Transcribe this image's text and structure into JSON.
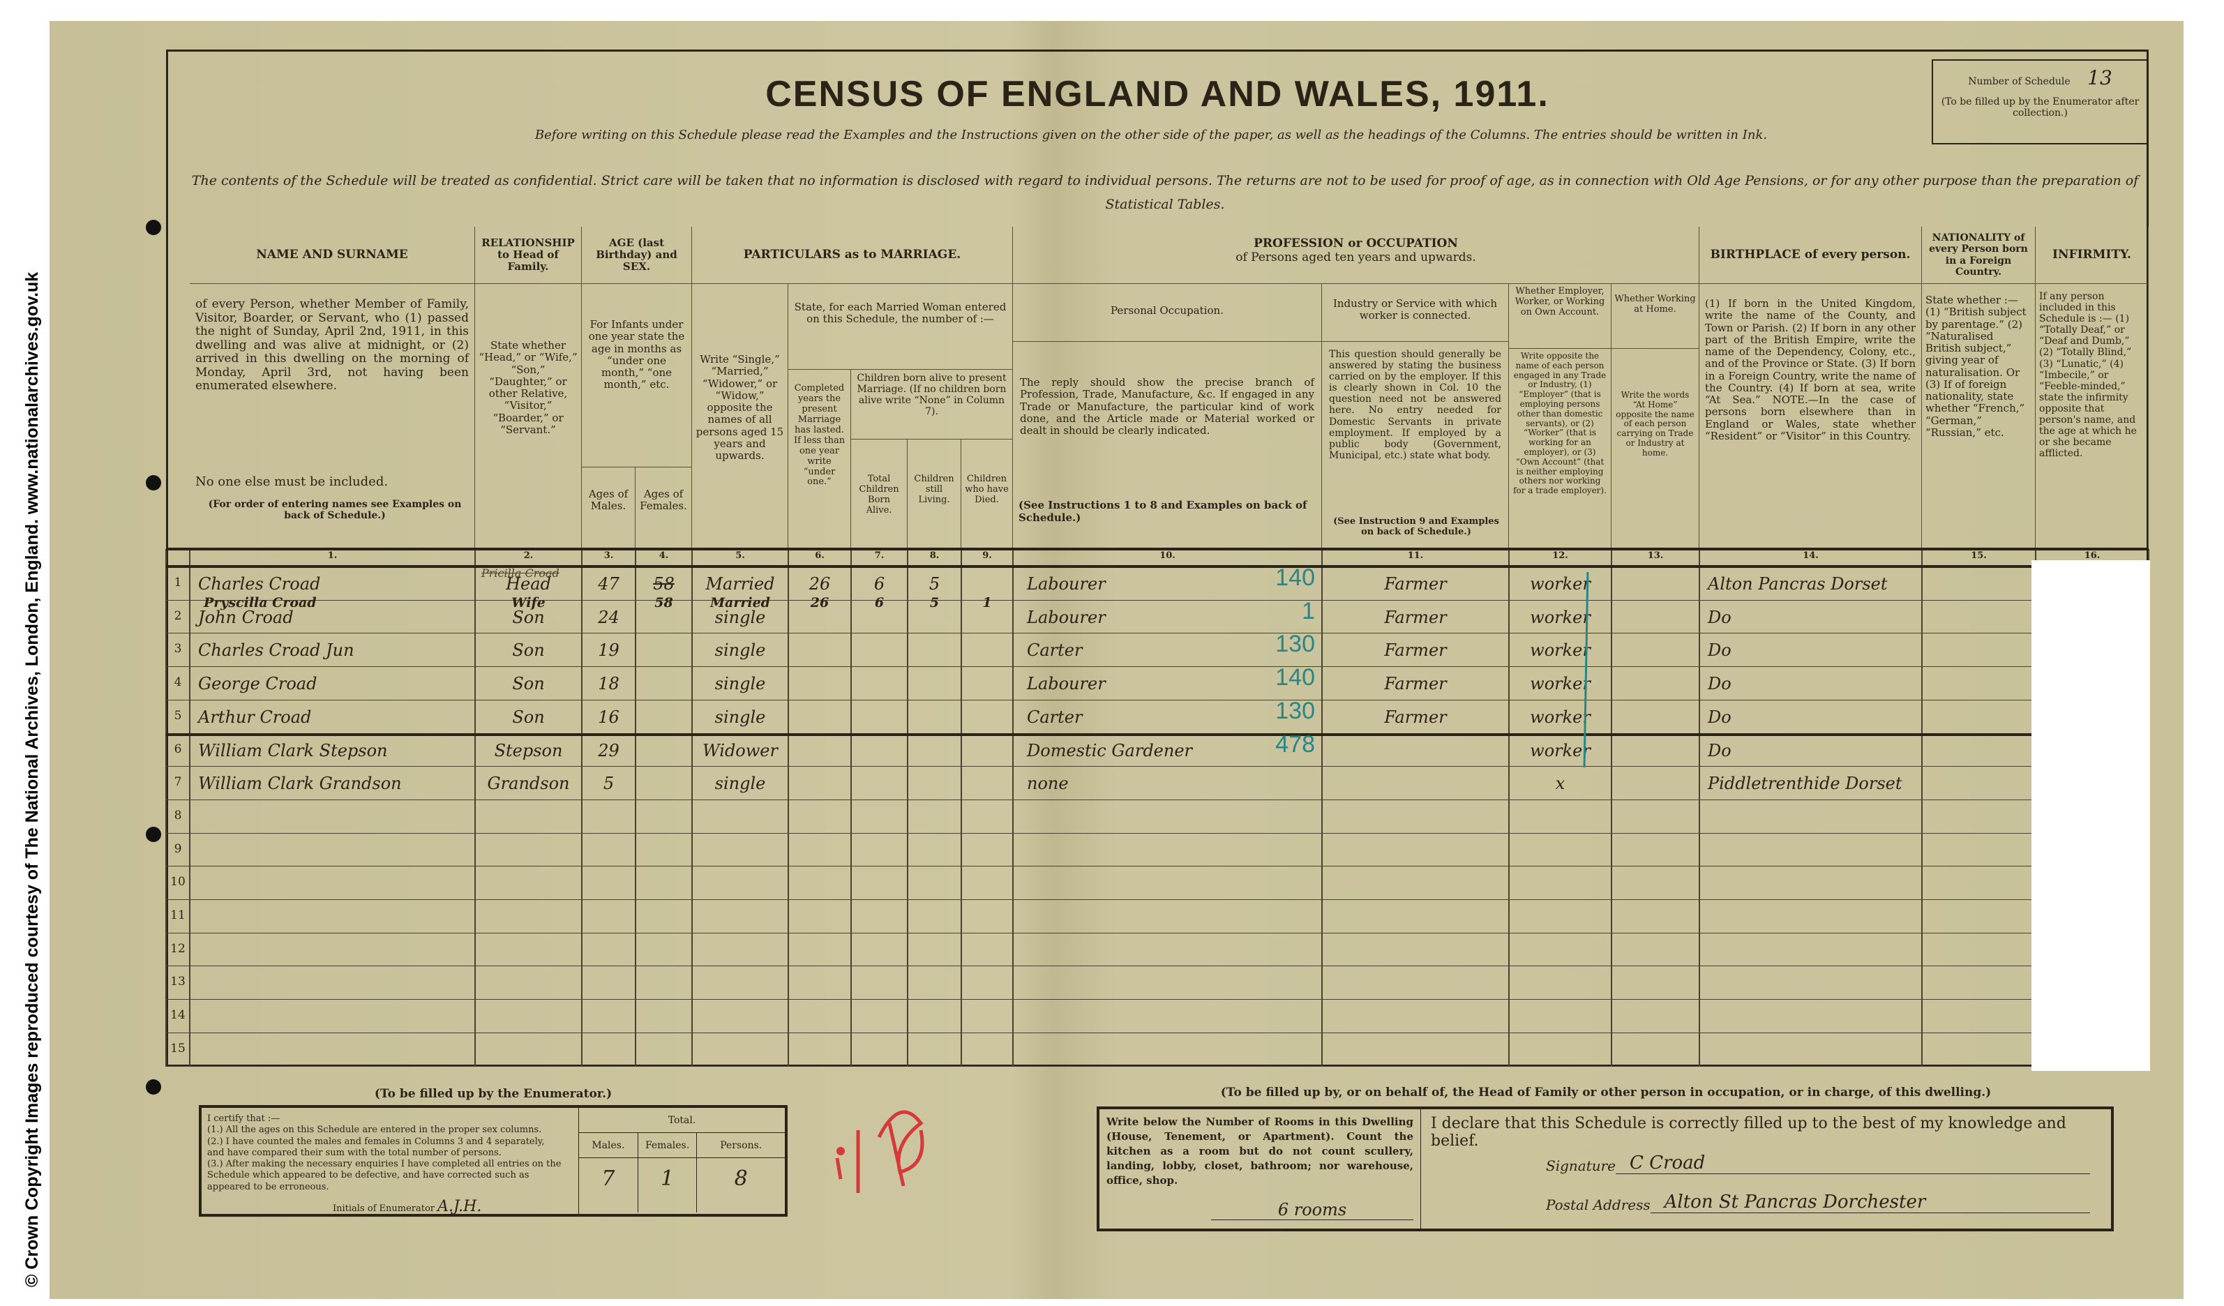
{
  "copyright": "© Crown Copyright Images reproduced courtesy of The National Archives, London, England. www.nationalarchives.gov.uk",
  "title": "CENSUS OF ENGLAND AND WALES, 1911.",
  "subtitle": "Before writing on this Schedule please read the Examples and the Instructions given on the other side of the paper, as well as the headings of the Columns. The entries should be written in Ink.",
  "confidential": "The contents of the Schedule will be treated as confidential. Strict care will be taken that no information is disclosed with regard to individual persons. The returns are not to be used for proof of age, as in connection with Old Age Pensions, or for any other purpose than the preparation of Statistical Tables.",
  "schedule": {
    "label": "Number of Schedule",
    "value": "13",
    "note": "(To be filled up by the Enumerator after collection.)"
  },
  "headers": {
    "name_title": "NAME AND SURNAME",
    "name_text": "of every Person, whether Member of Family, Visitor, Boarder, or Servant, who (1) passed the night of Sunday, April 2nd, 1911, in this dwelling and was alive at midnight, or (2) arrived in this dwelling on the morning of Monday, April 3rd, not having been enumerated elsewhere.",
    "name_rule": "No one else must be included.",
    "name_note": "(For order of entering names see Examples on back of Schedule.)",
    "rel_title": "RELATIONSHIP to Head of Family.",
    "rel_text": "State whether “Head,” or “Wife,” “Son,” “Daughter,” or other Relative, “Visitor,” “Boarder,” or “Servant.”",
    "age_title": "AGE (last Birthday) and SEX.",
    "age_text": "For Infants under one year state the age in months as “under one month,” “one month,” etc.",
    "age_males": "Ages of Males.",
    "age_females": "Ages of Females.",
    "marriage_title": "PARTICULARS as to MARRIAGE.",
    "marriage_text": "Write “Single,” “Married,” “Widower,” or “Widow,” opposite the names of all persons aged 15 years and upwards.",
    "married_woman": "State, for each Married Woman entered on this Schedule, the number of :—",
    "completed": "Completed years the present Marriage has lasted. If less than one year write “under one.”",
    "children": "Children born alive to present Marriage. (If no children born alive write “None” in Column 7).",
    "total_born": "Total Children Born Alive.",
    "still_living": "Children still Living.",
    "have_died": "Children who have Died.",
    "prof_title": "PROFESSION or OCCUPATION",
    "prof_sub": "of Persons aged ten years and upwards.",
    "personal_occ": "Personal Occupation.",
    "personal_text": "The reply should show the precise branch of Profession, Trade, Manufacture, &c. If engaged in any Trade or Manufacture, the particular kind of work done, and the Article made or Material worked or dealt in should be clearly indicated.",
    "personal_note": "(See Instructions 1 to 8 and Examples on back of Schedule.)",
    "industry": "Industry or Service with which worker is connected.",
    "industry_text": "This question should generally be answered by stating the business carried on by the employer. If this is clearly shown in Col. 10 the question need not be answered here. No entry needed for Domestic Servants in private employment. If employed by a public body (Government, Municipal, etc.) state what body.",
    "industry_note": "(See Instruction 9 and Examples on back of Schedule.)",
    "employer": "Whether Employer, Worker, or Working on Own Account.",
    "employer_text": "Write opposite the name of each person engaged in any Trade or Industry, (1) “Employer” (that is employing persons other than domestic servants), or (2) “Worker” (that is working for an employer), or (3) “Own Account” (that is neither employing others nor working for a trade employer).",
    "home": "Whether Working at Home.",
    "home_text": "Write the words “At Home” opposite the name of each person carrying on Trade or Industry at home.",
    "birth_title": "BIRTHPLACE of every person.",
    "birth_text": "(1) If born in the United Kingdom, write the name of the County, and Town or Parish. (2) If born in any other part of the British Empire, write the name of the Dependency, Colony, etc., and of the Province or State. (3) If born in a Foreign Country, write the name of the Country. (4) If born at sea, write “At Sea.” NOTE.—In the case of persons born elsewhere than in England or Wales, state whether “Resident” or “Visitor” in this Country.",
    "nat_title": "NATIONALITY of every Person born in a Foreign Country.",
    "nat_text": "State whether :— (1) “British subject by parentage.” (2) “Naturalised British subject,” giving year of naturalisation. Or (3) If of foreign nationality, state whether “French,” “German,” “Russian,” etc.",
    "inf_title": "INFIRMITY.",
    "inf_text": "If any person included in this Schedule is :— (1) “Totally Deaf,” or “Deaf and Dumb,” (2) “Totally Blind,” (3) “Lunatic,” (4) “Imbecile,” or “Feeble-minded,” state the infirmity opposite that person's name, and the age at which he or she became afflicted."
  },
  "col_numbers": [
    "1.",
    "2.",
    "3.",
    "4.",
    "5.",
    "6.",
    "7.",
    "8.",
    "9.",
    "10.",
    "11.",
    "12.",
    "13.",
    "14.",
    "15.",
    "16."
  ],
  "rows": [
    {
      "n": "1",
      "name": "Charles Croad",
      "rel": "Head",
      "rel_struck": "Pricilla Croad",
      "m": "47",
      "f": "58",
      "f_struck": true,
      "mar": "Married",
      "yrs": "26",
      "born": "6",
      "liv": "5",
      "died": "",
      "occ": "Labourer",
      "code": "140",
      "ind": "Farmer",
      "emp": "worker",
      "home": "",
      "birth": "Alton Pancras Dorset",
      "nat": "",
      "inf": ""
    },
    {
      "n": "2",
      "name": "John Croad",
      "rel": "Son",
      "m": "24",
      "f": "",
      "mar": "single",
      "yrs": "",
      "born": "",
      "liv": "",
      "died": "",
      "occ": "Labourer",
      "code": "1",
      "ind": "Farmer",
      "emp": "worker",
      "home": "",
      "birth": "Do",
      "nat": "",
      "inf": ""
    },
    {
      "n": "3",
      "name": "Charles Croad Jun",
      "rel": "Son",
      "m": "19",
      "f": "",
      "mar": "single",
      "occ": "Carter",
      "code": "130",
      "ind": "Farmer",
      "emp": "worker",
      "birth": "Do"
    },
    {
      "n": "4",
      "name": "George Croad",
      "rel": "Son",
      "m": "18",
      "f": "",
      "mar": "single",
      "occ": "Labourer",
      "code": "140",
      "ind": "Farmer",
      "emp": "worker",
      "birth": "Do"
    },
    {
      "n": "5",
      "name": "Arthur Croad",
      "rel": "Son",
      "m": "16",
      "f": "",
      "mar": "single",
      "occ": "Carter",
      "code": "130",
      "ind": "Farmer",
      "emp": "worker",
      "birth": "Do"
    },
    {
      "n": "6",
      "name": "William Clark Stepson",
      "rel": "Stepson",
      "m": "29",
      "f": "",
      "mar": "Widower",
      "occ": "Domestic Gardener",
      "code": "478",
      "ind": "",
      "emp": "worker",
      "birth": "Do"
    },
    {
      "n": "7",
      "name": "William Clark Grandson",
      "rel": "Grandson",
      "m": "5",
      "f": "",
      "mar": "single",
      "occ": "none",
      "code": "",
      "ind": "",
      "emp": "x",
      "birth": "Piddletrenthide Dorset"
    },
    {
      "n": "8"
    },
    {
      "n": "9"
    },
    {
      "n": "10"
    },
    {
      "n": "11"
    },
    {
      "n": "12"
    },
    {
      "n": "13"
    },
    {
      "n": "14"
    },
    {
      "n": "15"
    }
  ],
  "inserted": {
    "name": "Pryscilla Croad",
    "rel": "Wife",
    "f": "58",
    "mar": "Married",
    "yrs": "26",
    "born": "6",
    "liv": "5",
    "died": "1"
  },
  "enumerator": {
    "heading": "(To be filled up by the Enumerator.)",
    "certify": "I certify that :—",
    "items": [
      "(1.) All the ages on this Schedule are entered in the proper sex columns.",
      "(2.) I have counted the males and females in Columns 3 and 4 separately, and have compared their sum with the total number of persons.",
      "(3.) After making the necessary enquiries I have completed all entries on the Schedule which appeared to be defective, and have corrected such as appeared to be erroneous."
    ],
    "initials_label": "Initials of Enumerator",
    "initials": "A.J.H.",
    "total_label": "Total.",
    "males_label": "Males.",
    "females_label": "Females.",
    "persons_label": "Persons.",
    "males": "7",
    "females": "1",
    "persons": "8"
  },
  "head": {
    "heading": "(To be filled up by, or on behalf of, the Head of Family or other person in occupation, or in charge, of this dwelling.)",
    "rooms_text": "Write below the Number of Rooms in this Dwelling (House, Tenement, or Apartment). Count the kitchen as a room but do not count scullery, landing, lobby, closet, bathroom; nor warehouse, office, shop.",
    "rooms": "6 rooms",
    "declare": "I declare that this Schedule is correctly filled up to the best of my knowledge and belief.",
    "signature_label": "Signature",
    "signature": "C Croad",
    "address_label": "Postal Address",
    "address": "Alton St Pancras Dorchester"
  },
  "colors": {
    "paper": "#c9c29b",
    "ink": "#2a2418",
    "teal": "#2a8585",
    "red_stamp": "#d43a3a"
  }
}
